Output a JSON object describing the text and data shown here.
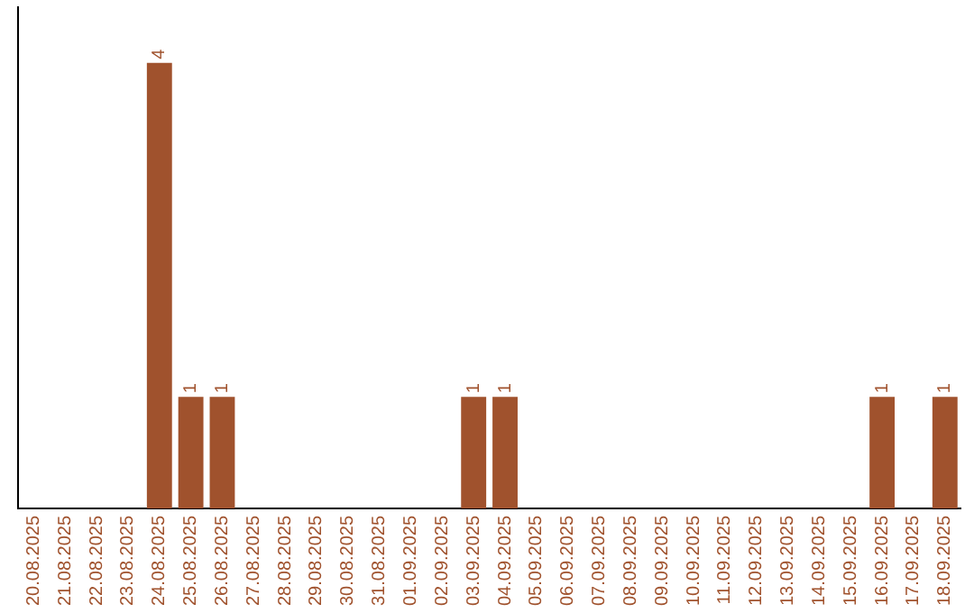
{
  "chart_data": {
    "type": "bar",
    "tick_labels": "x",
    "categories": [
      "20.08.2025",
      "21.08.2025",
      "22.08.2025",
      "23.08.2025",
      "24.08.2025",
      "25.08.2025",
      "26.08.2025",
      "27.08.2025",
      "28.08.2025",
      "29.08.2025",
      "30.08.2025",
      "31.08.2025",
      "01.09.2025",
      "02.09.2025",
      "03.09.2025",
      "04.09.2025",
      "05.09.2025",
      "06.09.2025",
      "07.09.2025",
      "08.09.2025",
      "09.09.2025",
      "10.09.2025",
      "11.09.2025",
      "12.09.2025",
      "13.09.2025",
      "14.09.2025",
      "15.09.2025",
      "16.09.2025",
      "17.09.2025",
      "18.09.2025"
    ],
    "values": [
      0,
      0,
      0,
      0,
      4,
      1,
      1,
      0,
      0,
      0,
      0,
      0,
      0,
      0,
      1,
      1,
      0,
      0,
      0,
      0,
      0,
      0,
      0,
      0,
      0,
      0,
      0,
      1,
      0,
      1
    ],
    "value_labels": [
      null,
      null,
      null,
      null,
      "4",
      "1",
      "1",
      null,
      null,
      null,
      null,
      null,
      null,
      null,
      "1",
      "1",
      null,
      null,
      null,
      null,
      null,
      null,
      null,
      null,
      null,
      null,
      null,
      "1",
      null,
      "1"
    ],
    "color": "#a0522d",
    "grid": false,
    "legend": false
  }
}
